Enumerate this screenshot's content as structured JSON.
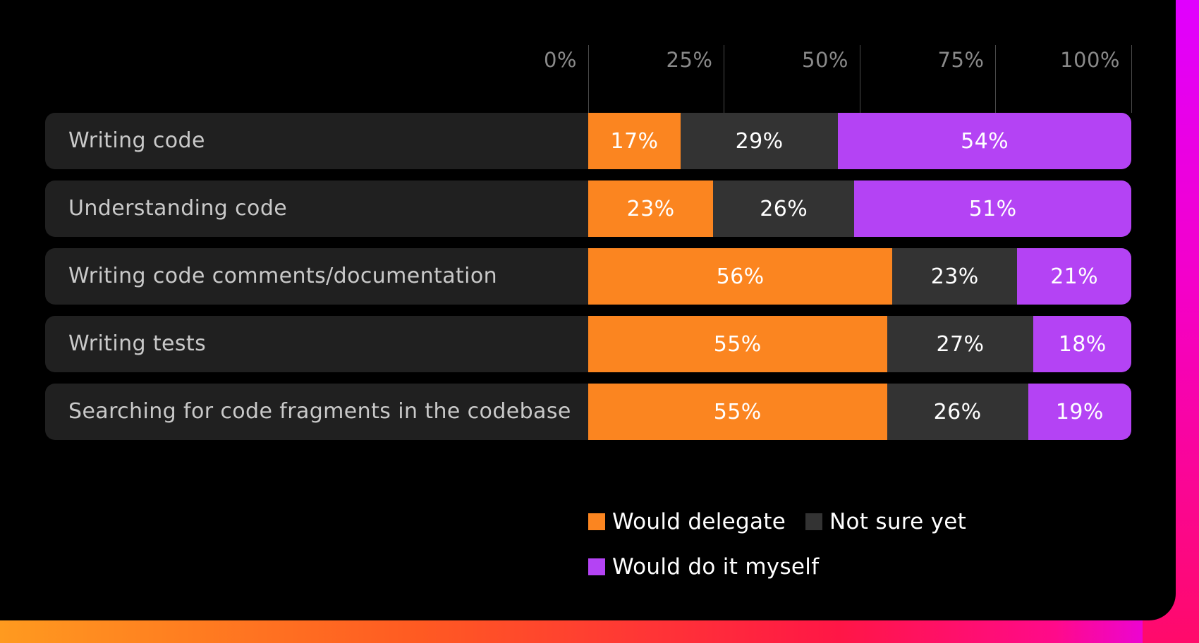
{
  "chart_data": {
    "type": "bar",
    "orientation": "horizontal",
    "stacked": true,
    "axis_ticks": [
      "0%",
      "25%",
      "50%",
      "75%",
      "100%"
    ],
    "xlim": [
      0,
      100
    ],
    "categories": [
      "Writing code",
      "Understanding code",
      "Writing code comments/documentation",
      "Writing tests",
      "Searching for code fragments in the codebase"
    ],
    "series": [
      {
        "name": "Would delegate",
        "color": "#fb8520",
        "values": [
          17,
          23,
          56,
          55,
          55
        ],
        "labels": [
          "17%",
          "23%",
          "56%",
          "55%",
          "55%"
        ]
      },
      {
        "name": "Not sure yet",
        "color": "#333333",
        "values": [
          29,
          26,
          23,
          27,
          26
        ],
        "labels": [
          "29%",
          "26%",
          "23%",
          "27%",
          "26%"
        ]
      },
      {
        "name": "Would do it myself",
        "color": "#b443f4",
        "values": [
          54,
          51,
          21,
          18,
          19
        ],
        "labels": [
          "54%",
          "51%",
          "21%",
          "18%",
          "19%"
        ]
      }
    ],
    "legend_position": "bottom",
    "grid": true
  },
  "colors": {
    "background": "#000000",
    "row_background": "#202020",
    "tick_text": "#8a8a8a",
    "row_text": "#c9c9c9"
  }
}
